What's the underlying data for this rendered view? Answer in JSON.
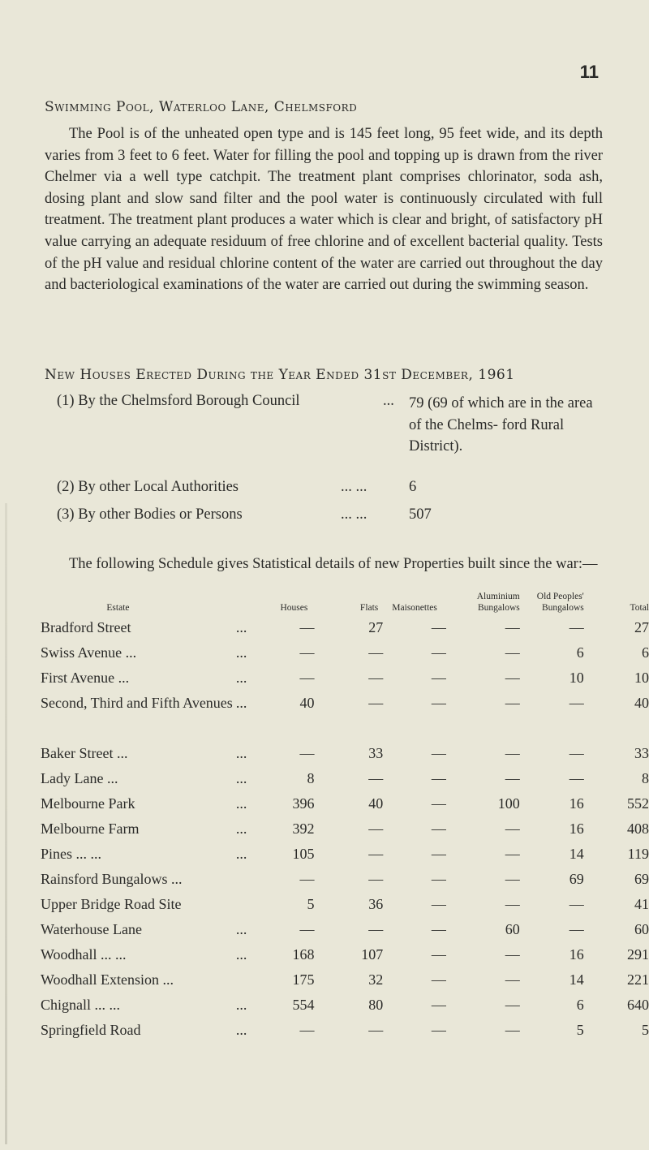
{
  "page_number": "11",
  "section1": {
    "heading": "Swimming Pool, Waterloo Lane, Chelmsford",
    "paragraph": "The Pool is of the unheated open type and is 145 feet long, 95 feet wide, and its depth varies from 3 feet to 6 feet. Water for filling the pool and topping up is drawn from the river Chelmer via a well type catchpit. The treatment plant comprises chlorinator, soda ash, dosing plant and slow sand filter and the pool water is continuously circulated with full treatment. The treatment plant produces a water which is clear and bright, of satisfactory pH value carrying an adequate residuum of free chlorine and of excellent bacterial quality. Tests of the pH value and residual chlorine content of the water are carried out throughout the day and bacteriological examinations of the water are carried out during the swimming season."
  },
  "section2": {
    "heading": "New Houses Erected During the Year Ended 31st December, 1961",
    "items": [
      {
        "label": "(1) By the Chelmsford Borough Council",
        "dots": "...",
        "value": "79 (69 of which are in the area of the Chelms- ford Rural District)."
      },
      {
        "label": "(2) By other Local Authorities",
        "dots": "... ...",
        "value": "6"
      },
      {
        "label": "(3) By other Bodies or Persons",
        "dots": "... ...",
        "value": "507"
      }
    ],
    "schedule_intro": "The following Schedule gives Statistical details of new Properties built since the war:—"
  },
  "table": {
    "headers": [
      "Estate",
      "Houses",
      "Flats",
      "Maisonettes",
      "Aluminium Bungalows",
      "Old Peoples' Bungalows",
      "Total"
    ],
    "rows": [
      {
        "estate": "Bradford Street",
        "dots": "...",
        "values": [
          "—",
          "27",
          "—",
          "—",
          "—",
          "27"
        ]
      },
      {
        "estate": "Swiss Avenue ...",
        "dots": "...",
        "values": [
          "—",
          "—",
          "—",
          "—",
          "6",
          "6"
        ]
      },
      {
        "estate": "First Avenue ...",
        "dots": "...",
        "values": [
          "—",
          "—",
          "—",
          "—",
          "10",
          "10"
        ]
      },
      {
        "estate": "Second, Third and Fifth Avenues",
        "dots": "...",
        "values": [
          "40",
          "—",
          "—",
          "—",
          "—",
          "40"
        ]
      },
      {
        "estate": "Baker Street ...",
        "dots": "...",
        "values": [
          "—",
          "33",
          "—",
          "—",
          "—",
          "33"
        ]
      },
      {
        "estate": "Lady Lane ...",
        "dots": "...",
        "values": [
          "8",
          "—",
          "—",
          "—",
          "—",
          "8"
        ]
      },
      {
        "estate": "Melbourne Park",
        "dots": "...",
        "values": [
          "396",
          "40",
          "—",
          "100",
          "16",
          "552"
        ]
      },
      {
        "estate": "Melbourne Farm",
        "dots": "...",
        "values": [
          "392",
          "—",
          "—",
          "—",
          "16",
          "408"
        ]
      },
      {
        "estate": "Pines ... ...",
        "dots": "...",
        "values": [
          "105",
          "—",
          "—",
          "—",
          "14",
          "119"
        ]
      },
      {
        "estate": "Rainsford Bungalows ...",
        "dots": "",
        "values": [
          "—",
          "—",
          "—",
          "—",
          "69",
          "69"
        ]
      },
      {
        "estate": "Upper Bridge Road Site",
        "dots": "",
        "values": [
          "5",
          "36",
          "—",
          "—",
          "—",
          "41"
        ]
      },
      {
        "estate": "Waterhouse Lane",
        "dots": "...",
        "values": [
          "—",
          "—",
          "—",
          "60",
          "—",
          "60"
        ]
      },
      {
        "estate": "Woodhall ... ...",
        "dots": "...",
        "values": [
          "168",
          "107",
          "—",
          "—",
          "16",
          "291"
        ]
      },
      {
        "estate": "Woodhall Extension ...",
        "dots": "",
        "values": [
          "175",
          "32",
          "—",
          "—",
          "14",
          "221"
        ]
      },
      {
        "estate": "Chignall ... ...",
        "dots": "...",
        "values": [
          "554",
          "80",
          "—",
          "—",
          "6",
          "640"
        ]
      },
      {
        "estate": "Springfield Road",
        "dots": "...",
        "values": [
          "—",
          "—",
          "—",
          "—",
          "5",
          "5"
        ]
      }
    ]
  }
}
